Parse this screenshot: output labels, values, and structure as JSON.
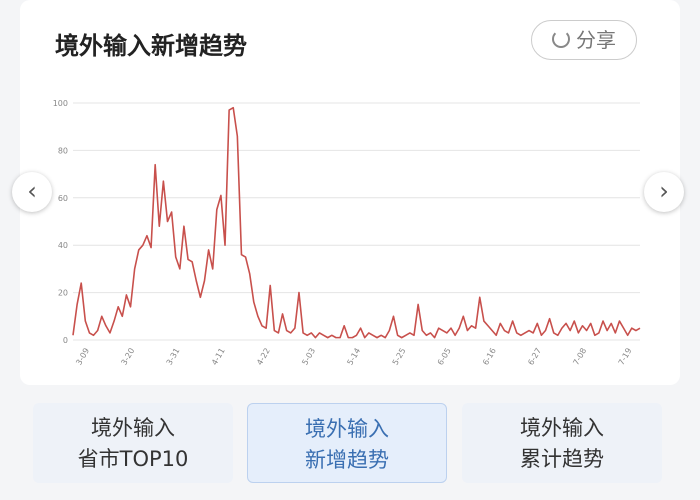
{
  "header": {
    "title": "境外输入新增趋势",
    "share": "分享"
  },
  "chart_data": {
    "type": "line",
    "categories": [
      null,
      null,
      null,
      null,
      "3-09",
      null,
      null,
      null,
      null,
      null,
      null,
      null,
      null,
      null,
      null,
      "3-20",
      null,
      null,
      null,
      null,
      null,
      null,
      null,
      null,
      null,
      null,
      "3-31",
      null,
      null,
      null,
      null,
      null,
      null,
      null,
      null,
      null,
      null,
      "4-11",
      null,
      null,
      null,
      null,
      null,
      null,
      null,
      null,
      null,
      null,
      "4-22",
      null,
      null,
      null,
      null,
      null,
      null,
      null,
      null,
      null,
      null,
      "5-03",
      null,
      null,
      null,
      null,
      null,
      null,
      null,
      null,
      null,
      null,
      "5-14",
      null,
      null,
      null,
      null,
      null,
      null,
      null,
      null,
      null,
      null,
      "5-25",
      null,
      null,
      null,
      null,
      null,
      null,
      null,
      null,
      null,
      null,
      "6-05",
      null,
      null,
      null,
      null,
      null,
      null,
      null,
      null,
      null,
      null,
      "6-16",
      null,
      null,
      null,
      null,
      null,
      null,
      null,
      null,
      null,
      null,
      "6-27",
      null,
      null,
      null,
      null,
      null,
      null,
      null,
      null,
      null,
      null,
      "7-08",
      null,
      null,
      null,
      null,
      null,
      null,
      null,
      null,
      null,
      null,
      "7-19",
      null,
      null
    ],
    "series": [
      {
        "name": "新增",
        "color": "#c8504c",
        "values": [
          2,
          15,
          24,
          8,
          3,
          2,
          4,
          10,
          6,
          3,
          8,
          14,
          10,
          19,
          14,
          30,
          38,
          40,
          44,
          39,
          74,
          48,
          67,
          50,
          54,
          35,
          30,
          48,
          34,
          33,
          25,
          18,
          25,
          38,
          30,
          55,
          61,
          40,
          97,
          98,
          86,
          36,
          35,
          28,
          16,
          10,
          6,
          5,
          23,
          4,
          3,
          11,
          4,
          3,
          5,
          20,
          3,
          2,
          3,
          1,
          3,
          2,
          1,
          2,
          1,
          1,
          6,
          1,
          1,
          2,
          5,
          1,
          3,
          2,
          1,
          2,
          1,
          4,
          10,
          2,
          1,
          2,
          3,
          2,
          15,
          4,
          2,
          3,
          1,
          5,
          4,
          3,
          5,
          2,
          5,
          10,
          4,
          6,
          5,
          18,
          8,
          6,
          4,
          2,
          7,
          4,
          3,
          8,
          3,
          2,
          3,
          4,
          3,
          7,
          2,
          4,
          9,
          3,
          2,
          5,
          7,
          4,
          8,
          3,
          6,
          4,
          7,
          2,
          3,
          8,
          4,
          7,
          3,
          8,
          5,
          2,
          5,
          4,
          5
        ]
      }
    ],
    "ylim": [
      0,
      100
    ],
    "yticks": [
      0,
      20,
      40,
      60,
      80,
      100
    ],
    "grid": true
  },
  "tabs": [
    {
      "line1": "境外输入",
      "line2": "省市TOP10"
    },
    {
      "line1": "境外输入",
      "line2": "新增趋势"
    },
    {
      "line1": "境外输入",
      "line2": "累计趋势"
    }
  ]
}
